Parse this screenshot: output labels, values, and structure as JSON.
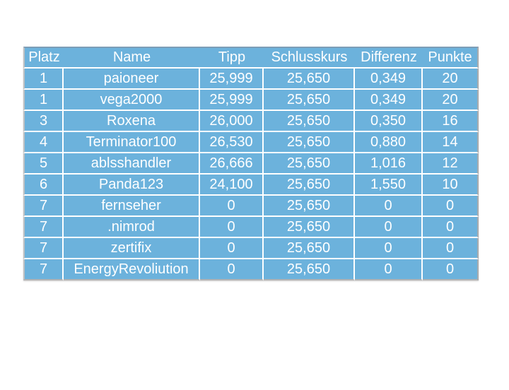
{
  "colors": {
    "cell_blue": "#6CB2DC",
    "grid_line": "#FFFFFF",
    "table_top_border": "#7C9DB8",
    "table_side_border": "#B3B7BA",
    "table_bottom_border": "#B3B3B3",
    "text": "#FFFFFF",
    "canvas": "#FFFFFF"
  },
  "table": {
    "columns": [
      {
        "key": "platz",
        "label": "Platz"
      },
      {
        "key": "name",
        "label": "Name"
      },
      {
        "key": "tipp",
        "label": "Tipp"
      },
      {
        "key": "schlusskurs",
        "label": "Schlusskurs"
      },
      {
        "key": "differenz",
        "label": "Differenz"
      },
      {
        "key": "punkte",
        "label": "Punkte"
      }
    ],
    "rows": [
      {
        "platz": "1",
        "name": "paioneer",
        "tipp": "25,999",
        "schlusskurs": "25,650",
        "differenz": "0,349",
        "punkte": "20"
      },
      {
        "platz": "1",
        "name": "vega2000",
        "tipp": "25,999",
        "schlusskurs": "25,650",
        "differenz": "0,349",
        "punkte": "20"
      },
      {
        "platz": "3",
        "name": "Roxena",
        "tipp": "26,000",
        "schlusskurs": "25,650",
        "differenz": "0,350",
        "punkte": "16"
      },
      {
        "platz": "4",
        "name": "Terminator100",
        "tipp": "26,530",
        "schlusskurs": "25,650",
        "differenz": "0,880",
        "punkte": "14"
      },
      {
        "platz": "5",
        "name": "ablsshandler",
        "tipp": "26,666",
        "schlusskurs": "25,650",
        "differenz": "1,016",
        "punkte": "12"
      },
      {
        "platz": "6",
        "name": "Panda123",
        "tipp": "24,100",
        "schlusskurs": "25,650",
        "differenz": "1,550",
        "punkte": "10"
      },
      {
        "platz": "7",
        "name": "fernseher",
        "tipp": "0",
        "schlusskurs": "25,650",
        "differenz": "0",
        "punkte": "0"
      },
      {
        "platz": "7",
        "name": ".nimrod",
        "tipp": "0",
        "schlusskurs": "25,650",
        "differenz": "0",
        "punkte": "0"
      },
      {
        "platz": "7",
        "name": "zertifix",
        "tipp": "0",
        "schlusskurs": "25,650",
        "differenz": "0",
        "punkte": "0"
      },
      {
        "platz": "7",
        "name": "EnergyRevoliution",
        "tipp": "0",
        "schlusskurs": "25,650",
        "differenz": "0",
        "punkte": "0"
      }
    ]
  }
}
